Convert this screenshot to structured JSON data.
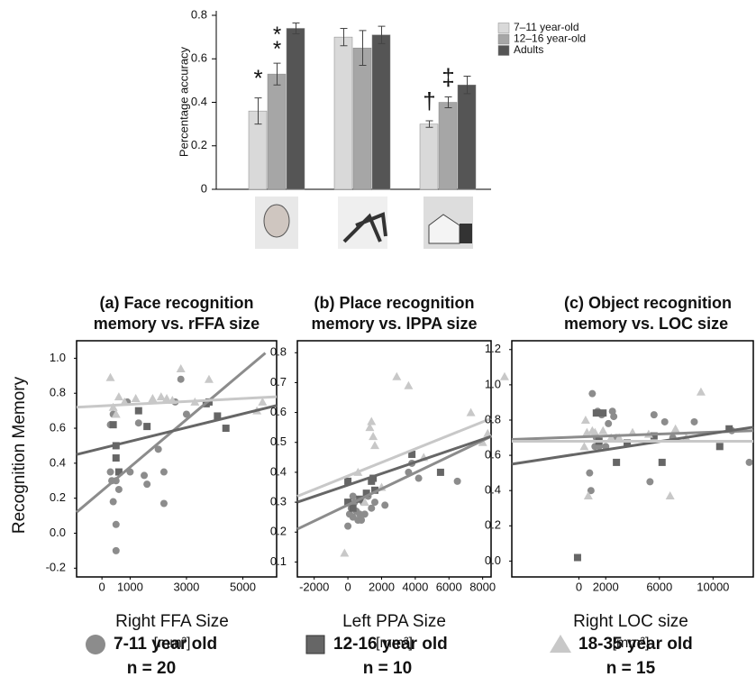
{
  "chart_data": [
    {
      "type": "bar",
      "y_label": "Percentage accuracy",
      "categories": [
        null,
        null,
        null
      ],
      "series": [
        {
          "name": "7–11 year-old",
          "color": "#d9d9d9",
          "values": [
            0.36,
            0.7,
            0.3
          ],
          "errors": [
            0.06,
            0.04,
            0.015
          ]
        },
        {
          "name": "12–16 year-old",
          "color": "#a6a6a6",
          "values": [
            0.53,
            0.65,
            0.4
          ],
          "errors": [
            0.05,
            0.08,
            0.025
          ]
        },
        {
          "name": "Adults",
          "color": "#555555",
          "values": [
            0.74,
            0.71,
            0.48
          ],
          "errors": [
            0.025,
            0.04,
            0.04
          ]
        }
      ],
      "annotations": [
        {
          "text": "*",
          "series": 0,
          "category": 0
        },
        {
          "text": "**",
          "series": 1,
          "category": 0
        },
        {
          "text": "†",
          "series": 0,
          "category": 2
        },
        {
          "text": "‡",
          "series": 1,
          "category": 2
        }
      ],
      "ylim": [
        0,
        0.8
      ],
      "yticks": [
        0,
        0.2,
        0.4,
        0.6,
        0.8
      ],
      "legend": "top-right"
    },
    {
      "type": "scatter",
      "title": [
        "(a) Face recognition",
        "memory vs. rFFA size"
      ],
      "x_label": "Right FFA Size",
      "x_unit": "[mm³]",
      "xlim": [
        -900,
        6200
      ],
      "xticks": [
        0,
        1000,
        3000,
        5000
      ],
      "ylim": [
        -0.25,
        1.1
      ],
      "yticks": [
        -0.2,
        {
          "value": 0,
          "label": "0.0"
        },
        0.2,
        0.4,
        0.6,
        0.8,
        {
          "value": 1,
          "label": "1.0"
        }
      ],
      "series": [
        {
          "marker": "circle",
          "color": "#8c8c8c",
          "x": [
            300,
            350,
            400,
            500,
            500,
            500,
            600,
            300,
            400,
            900,
            1000,
            1300,
            1500,
            1600,
            2000,
            2200,
            2200,
            2600,
            2800,
            3000
          ],
          "y": [
            0.35,
            0.3,
            0.18,
            -0.1,
            0.05,
            0.3,
            0.25,
            0.62,
            0.68,
            0.75,
            0.35,
            0.63,
            0.33,
            0.28,
            0.48,
            0.35,
            0.17,
            0.75,
            0.88,
            0.68
          ],
          "trend_x": [
            -900,
            5800
          ],
          "trend_y": [
            0.12,
            1.03
          ]
        },
        {
          "marker": "square",
          "color": "#666666",
          "x": [
            400,
            500,
            500,
            600,
            1300,
            1600,
            3700,
            3800,
            4100,
            4400
          ],
          "y": [
            0.62,
            0.5,
            0.43,
            0.35,
            0.7,
            0.61,
            0.74,
            0.75,
            0.67,
            0.6
          ],
          "trend_x": [
            -900,
            6200
          ],
          "trend_y": [
            0.45,
            0.73
          ]
        },
        {
          "marker": "triangle",
          "color": "#c8c8c8",
          "x": [
            300,
            500,
            800,
            1200,
            2100,
            2300,
            2800,
            3300,
            3800,
            5500,
            5700,
            400,
            600,
            1800,
            2500
          ],
          "y": [
            0.89,
            0.68,
            0.75,
            0.77,
            0.78,
            0.77,
            0.94,
            0.75,
            0.88,
            0.7,
            0.75,
            0.72,
            0.78,
            0.77,
            0.76
          ],
          "trend_x": [
            -900,
            6200
          ],
          "trend_y": [
            0.72,
            0.78
          ]
        }
      ]
    },
    {
      "type": "scatter",
      "title": [
        "(b) Place recognition",
        "memory vs. lPPA size"
      ],
      "x_label": "Left PPA Size",
      "x_unit": "[mm³]",
      "xlim": [
        -3000,
        8500
      ],
      "xticks": [
        -2000,
        0,
        2000,
        4000,
        6000,
        8000
      ],
      "ylim": [
        0.05,
        0.84
      ],
      "yticks": [
        0.1,
        0.2,
        0.3,
        0.4,
        0.5,
        0.6,
        0.7,
        0.8
      ],
      "series": [
        {
          "marker": "circle",
          "color": "#8c8c8c",
          "x": [
            0,
            100,
            200,
            300,
            400,
            500,
            600,
            800,
            900,
            1000,
            1200,
            1400,
            1600,
            2200,
            3600,
            3800,
            4200,
            6500,
            300,
            700
          ],
          "y": [
            0.22,
            0.26,
            0.28,
            0.25,
            0.3,
            0.27,
            0.24,
            0.24,
            0.3,
            0.26,
            0.32,
            0.28,
            0.3,
            0.29,
            0.4,
            0.43,
            0.38,
            0.37,
            0.32,
            0.26
          ],
          "trend_x": [
            -3000,
            8500
          ],
          "trend_y": [
            0.21,
            0.52
          ]
        },
        {
          "marker": "square",
          "color": "#666666",
          "x": [
            0,
            0,
            300,
            700,
            1400,
            1500,
            1600,
            3800,
            5500,
            1100
          ],
          "y": [
            0.37,
            0.3,
            0.28,
            0.31,
            0.37,
            0.38,
            0.34,
            0.46,
            0.4,
            0.33
          ],
          "trend_x": [
            -3000,
            8500
          ],
          "trend_y": [
            0.3,
            0.52
          ]
        },
        {
          "marker": "triangle",
          "color": "#c8c8c8",
          "x": [
            -200,
            1300,
            1400,
            1500,
            1600,
            2900,
            3600,
            7300,
            8300,
            9300,
            600,
            2000,
            1000,
            4500,
            8000
          ],
          "y": [
            0.13,
            0.55,
            0.57,
            0.52,
            0.49,
            0.72,
            0.69,
            0.6,
            0.53,
            0.72,
            0.4,
            0.35,
            0.3,
            0.45,
            0.5
          ],
          "trend_x": [
            -3000,
            8500
          ],
          "trend_y": [
            0.32,
            0.58
          ]
        }
      ]
    },
    {
      "type": "scatter",
      "title": [
        "(c) Object recognition",
        "memory vs. LOC size"
      ],
      "x_label": "Right LOC size",
      "x_unit": "[mm³]",
      "xlim": [
        -5000,
        13000
      ],
      "xticks": [
        0,
        2000,
        6000,
        10000
      ],
      "ylim": [
        -0.09,
        1.25
      ],
      "yticks": [
        {
          "value": 0,
          "label": "0.0"
        },
        0.2,
        0.4,
        0.6,
        0.8,
        {
          "value": 1,
          "label": "1.0"
        },
        1.2
      ],
      "series": [
        {
          "marker": "circle",
          "color": "#8c8c8c",
          "x": [
            800,
            1000,
            1200,
            1300,
            1400,
            1500,
            1700,
            2000,
            2200,
            2500,
            2600,
            2800,
            5300,
            5600,
            6400,
            7000,
            8600,
            11400,
            12700,
            900
          ],
          "y": [
            0.5,
            0.95,
            0.65,
            0.7,
            0.85,
            0.65,
            0.83,
            0.65,
            0.78,
            0.85,
            0.82,
            0.7,
            0.45,
            0.83,
            0.79,
            0.7,
            0.79,
            0.74,
            0.56,
            0.4
          ],
          "trend_x": [
            -5000,
            13000
          ],
          "trend_y": [
            0.69,
            0.74
          ]
        },
        {
          "marker": "square",
          "color": "#666666",
          "x": [
            -100,
            1300,
            1800,
            2800,
            3600,
            5600,
            6200,
            10500,
            11200,
            1500
          ],
          "y": [
            0.02,
            0.84,
            0.84,
            0.56,
            0.67,
            0.71,
            0.56,
            0.65,
            0.75,
            0.68
          ],
          "trend_x": [
            -5000,
            13000
          ],
          "trend_y": [
            0.55,
            0.76
          ]
        },
        {
          "marker": "triangle",
          "color": "#c8c8c8",
          "x": [
            500,
            600,
            700,
            1200,
            1800,
            2400,
            4000,
            5200,
            6800,
            7200,
            9100,
            400,
            1000,
            3000,
            8000
          ],
          "y": [
            0.8,
            0.73,
            0.37,
            0.73,
            0.74,
            0.7,
            0.73,
            0.72,
            0.37,
            0.75,
            0.96,
            0.65,
            0.74,
            0.7,
            0.7
          ],
          "trend_x": [
            -5000,
            13000
          ],
          "trend_y": [
            0.68,
            0.68
          ]
        }
      ]
    }
  ],
  "scatter_y_label": "Recognition Memory",
  "scatter_legend": [
    {
      "name": "7-11 year old",
      "n": "n = 20"
    },
    {
      "name": "12-16 year old",
      "n": "n = 10"
    },
    {
      "name": "18-35 year old",
      "n": "n = 15"
    }
  ]
}
